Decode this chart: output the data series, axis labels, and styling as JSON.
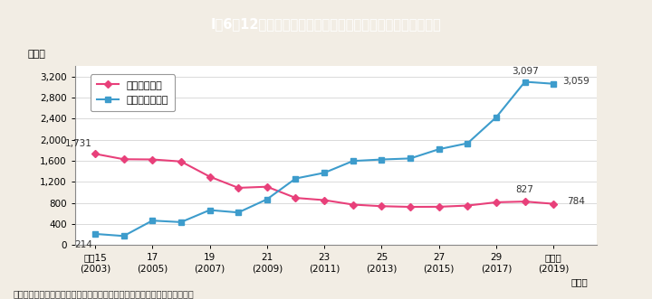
{
  "title": "I-6-12図　児童買春及び児童ポルノ事犯の標挙件数の推移",
  "title_prefix": "I－6－12図　",
  "title_main": "児童買春及び児童ポルノ事犯の標挙件数の推移",
  "title_bg": "#29b5c8",
  "background": "#f2ede4",
  "plot_bg": "#ffffff",
  "ylabel": "（件）",
  "xlabel_note": "（備考）警察庁「少年非行，児童虐待及び子供の性被害の状況」より作成。",
  "years": [
    2003,
    2004,
    2005,
    2006,
    2007,
    2008,
    2009,
    2010,
    2011,
    2012,
    2013,
    2014,
    2015,
    2016,
    2017,
    2018,
    2019
  ],
  "heisei_ticks": [
    2003,
    2005,
    2007,
    2009,
    2011,
    2013,
    2015,
    2017,
    2019
  ],
  "heisei_line1": [
    "平成15",
    "17",
    "19",
    "21",
    "23",
    "25",
    "27",
    "29",
    "令和元"
  ],
  "heisei_line2": [
    "(2003)",
    "(2005)",
    "(2007)",
    "(2009)",
    "(2011)",
    "(2013)",
    "(2015)",
    "(2017)",
    "(2019)"
  ],
  "series1_label": "児童買春事犯",
  "series1_color": "#e8407a",
  "series1_values": [
    1731,
    1629,
    1625,
    1586,
    1299,
    1087,
    1108,
    896,
    854,
    769,
    739,
    726,
    728,
    751,
    813,
    827,
    784
  ],
  "series2_label": "児童ポルノ事犯",
  "series2_color": "#3d9ccc",
  "series2_values": [
    214,
    174,
    466,
    437,
    665,
    620,
    870,
    1264,
    1372,
    1596,
    1624,
    1644,
    1819,
    1932,
    2425,
    3097,
    3059
  ],
  "ylim": [
    0,
    3400
  ],
  "yticks": [
    0,
    400,
    800,
    1200,
    1600,
    2000,
    2400,
    2800,
    3200
  ],
  "ytick_labels": [
    "0",
    "400",
    "800",
    "1,200",
    "1,600",
    "2,000",
    "2,400",
    "2,800",
    "3,200"
  ]
}
